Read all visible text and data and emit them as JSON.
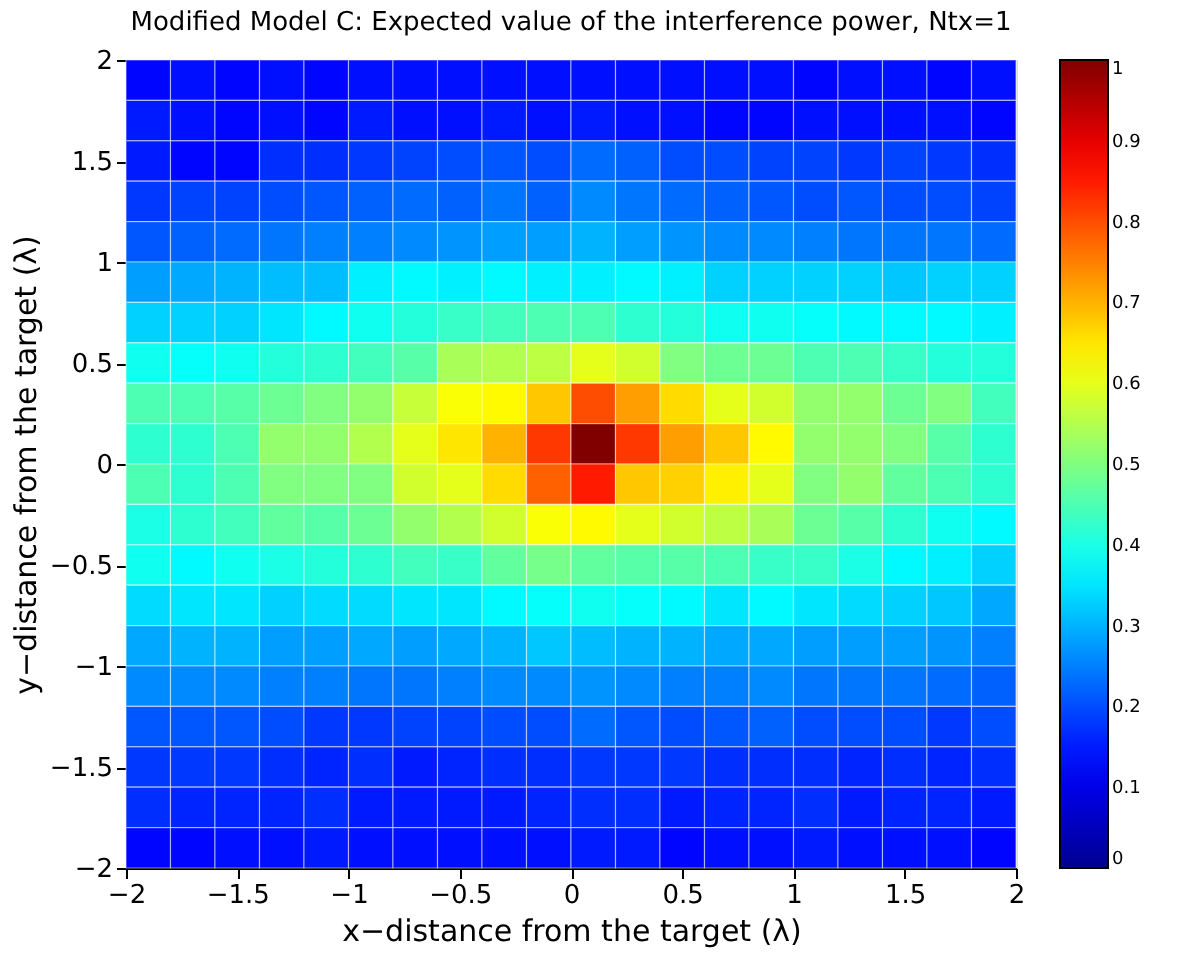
{
  "chart_data": {
    "type": "heatmap",
    "title": "Modified Model C: Expected value of the interference power, Ntx=1",
    "xlabel": "x−distance from the target (λ)",
    "ylabel": "y−distance from the target (λ)",
    "xlim": [
      -2,
      2
    ],
    "ylim": [
      -2,
      2
    ],
    "xticks": [
      -2,
      -1.5,
      -1,
      -0.5,
      0,
      0.5,
      1,
      1.5,
      2
    ],
    "yticks": [
      -2,
      -1.5,
      -1,
      -0.5,
      0,
      0.5,
      1,
      1.5,
      2
    ],
    "clim": [
      0,
      1
    ],
    "cticks": [
      0,
      0.1,
      0.2,
      0.3,
      0.4,
      0.5,
      0.6,
      0.7,
      0.8,
      0.9,
      1
    ],
    "cells": [
      [
        0.13,
        0.14,
        0.13,
        0.14,
        0.13,
        0.14,
        0.14,
        0.14,
        0.14,
        0.14,
        0.14,
        0.14,
        0.14,
        0.14,
        0.14,
        0.13,
        0.14,
        0.14,
        0.13,
        0.14
      ],
      [
        0.15,
        0.14,
        0.13,
        0.14,
        0.13,
        0.15,
        0.14,
        0.14,
        0.15,
        0.14,
        0.15,
        0.14,
        0.14,
        0.13,
        0.13,
        0.14,
        0.14,
        0.14,
        0.14,
        0.13
      ],
      [
        0.15,
        0.13,
        0.13,
        0.17,
        0.17,
        0.18,
        0.19,
        0.2,
        0.21,
        0.2,
        0.23,
        0.22,
        0.2,
        0.2,
        0.19,
        0.19,
        0.18,
        0.19,
        0.18,
        0.17
      ],
      [
        0.18,
        0.19,
        0.19,
        0.2,
        0.21,
        0.22,
        0.23,
        0.22,
        0.24,
        0.22,
        0.26,
        0.24,
        0.23,
        0.22,
        0.21,
        0.2,
        0.21,
        0.2,
        0.2,
        0.19
      ],
      [
        0.21,
        0.22,
        0.23,
        0.24,
        0.25,
        0.25,
        0.26,
        0.27,
        0.28,
        0.28,
        0.3,
        0.28,
        0.27,
        0.26,
        0.26,
        0.25,
        0.24,
        0.24,
        0.24,
        0.23
      ],
      [
        0.28,
        0.29,
        0.3,
        0.31,
        0.31,
        0.36,
        0.37,
        0.36,
        0.37,
        0.36,
        0.36,
        0.37,
        0.36,
        0.33,
        0.33,
        0.33,
        0.33,
        0.32,
        0.33,
        0.33
      ],
      [
        0.33,
        0.33,
        0.33,
        0.35,
        0.37,
        0.39,
        0.41,
        0.43,
        0.44,
        0.45,
        0.45,
        0.42,
        0.41,
        0.39,
        0.39,
        0.38,
        0.37,
        0.37,
        0.37,
        0.36
      ],
      [
        0.39,
        0.38,
        0.39,
        0.41,
        0.42,
        0.44,
        0.46,
        0.54,
        0.55,
        0.56,
        0.6,
        0.58,
        0.5,
        0.48,
        0.48,
        0.45,
        0.45,
        0.43,
        0.41,
        0.41
      ],
      [
        0.45,
        0.45,
        0.46,
        0.48,
        0.5,
        0.52,
        0.57,
        0.62,
        0.63,
        0.68,
        0.8,
        0.72,
        0.66,
        0.6,
        0.58,
        0.52,
        0.52,
        0.48,
        0.5,
        0.44
      ],
      [
        0.42,
        0.42,
        0.45,
        0.52,
        0.52,
        0.55,
        0.6,
        0.65,
        0.7,
        0.82,
        1.0,
        0.82,
        0.72,
        0.68,
        0.63,
        0.52,
        0.52,
        0.5,
        0.46,
        0.42
      ],
      [
        0.45,
        0.42,
        0.45,
        0.5,
        0.5,
        0.5,
        0.58,
        0.6,
        0.66,
        0.78,
        0.85,
        0.68,
        0.67,
        0.64,
        0.6,
        0.5,
        0.52,
        0.47,
        0.45,
        0.42
      ],
      [
        0.4,
        0.42,
        0.44,
        0.47,
        0.46,
        0.48,
        0.52,
        0.55,
        0.58,
        0.62,
        0.63,
        0.6,
        0.58,
        0.56,
        0.54,
        0.48,
        0.46,
        0.42,
        0.39,
        0.37
      ],
      [
        0.39,
        0.37,
        0.39,
        0.4,
        0.41,
        0.42,
        0.44,
        0.43,
        0.47,
        0.49,
        0.47,
        0.46,
        0.46,
        0.45,
        0.43,
        0.43,
        0.4,
        0.37,
        0.36,
        0.33
      ],
      [
        0.34,
        0.35,
        0.35,
        0.33,
        0.34,
        0.34,
        0.35,
        0.35,
        0.37,
        0.38,
        0.39,
        0.38,
        0.37,
        0.35,
        0.37,
        0.35,
        0.34,
        0.33,
        0.32,
        0.29
      ],
      [
        0.29,
        0.3,
        0.3,
        0.28,
        0.28,
        0.29,
        0.28,
        0.29,
        0.3,
        0.32,
        0.31,
        0.3,
        0.3,
        0.29,
        0.29,
        0.28,
        0.28,
        0.28,
        0.27,
        0.25
      ],
      [
        0.26,
        0.26,
        0.26,
        0.25,
        0.25,
        0.24,
        0.24,
        0.25,
        0.26,
        0.26,
        0.27,
        0.26,
        0.25,
        0.25,
        0.26,
        0.24,
        0.24,
        0.24,
        0.23,
        0.22
      ],
      [
        0.21,
        0.21,
        0.21,
        0.2,
        0.18,
        0.18,
        0.19,
        0.19,
        0.2,
        0.2,
        0.23,
        0.21,
        0.2,
        0.21,
        0.22,
        0.2,
        0.2,
        0.2,
        0.18,
        0.2
      ],
      [
        0.18,
        0.18,
        0.18,
        0.17,
        0.16,
        0.17,
        0.15,
        0.16,
        0.17,
        0.17,
        0.18,
        0.18,
        0.18,
        0.17,
        0.17,
        0.17,
        0.16,
        0.17,
        0.16,
        0.17
      ],
      [
        0.17,
        0.16,
        0.16,
        0.16,
        0.17,
        0.15,
        0.15,
        0.15,
        0.15,
        0.16,
        0.17,
        0.17,
        0.15,
        0.16,
        0.16,
        0.17,
        0.15,
        0.16,
        0.16,
        0.15
      ],
      [
        0.13,
        0.13,
        0.14,
        0.14,
        0.15,
        0.14,
        0.14,
        0.14,
        0.14,
        0.14,
        0.15,
        0.15,
        0.13,
        0.14,
        0.14,
        0.15,
        0.14,
        0.14,
        0.14,
        0.13
      ]
    ]
  }
}
